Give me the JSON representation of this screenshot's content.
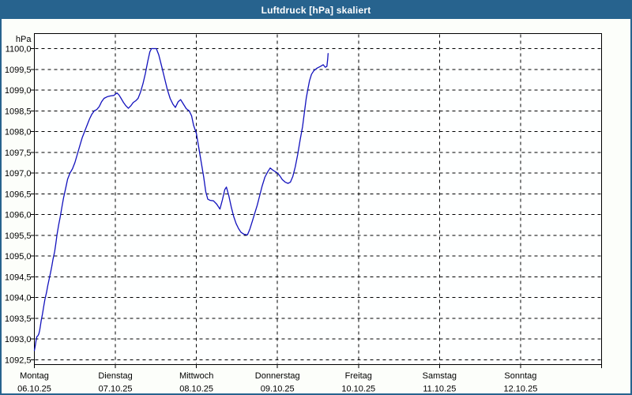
{
  "window": {
    "title": "Luftdruck [hPa] skaliert"
  },
  "colors": {
    "titlebar": "#27638E",
    "window_border": "#27638E",
    "background": "#fcfefa",
    "plot_background": "#feffff",
    "grid": "#000000",
    "text": "#000000",
    "line": "#1212bd"
  },
  "chart_data": {
    "type": "line",
    "title": "Luftdruck [hPa] skaliert",
    "unit_label": "hPa",
    "ylim": [
      1092.5,
      1100.0
    ],
    "y_tick_step": 0.5,
    "y_ticks": [
      {
        "value": 1100.0,
        "label": "1100,0"
      },
      {
        "value": 1099.5,
        "label": "1099,5"
      },
      {
        "value": 1099.0,
        "label": "1099,0"
      },
      {
        "value": 1098.5,
        "label": "1098,5"
      },
      {
        "value": 1098.0,
        "label": "1098,0"
      },
      {
        "value": 1097.5,
        "label": "1097,5"
      },
      {
        "value": 1097.0,
        "label": "1097,0"
      },
      {
        "value": 1096.5,
        "label": "1096,5"
      },
      {
        "value": 1096.0,
        "label": "1096,0"
      },
      {
        "value": 1095.5,
        "label": "1095,5"
      },
      {
        "value": 1095.0,
        "label": "1095,0"
      },
      {
        "value": 1094.5,
        "label": "1094,5"
      },
      {
        "value": 1094.0,
        "label": "1094,0"
      },
      {
        "value": 1093.5,
        "label": "1093,5"
      },
      {
        "value": 1093.0,
        "label": "1093,0"
      },
      {
        "value": 1092.5,
        "label": "1092,5"
      }
    ],
    "xlim_days": [
      0,
      7
    ],
    "x_ticks": [
      {
        "day_index": 0,
        "day": "Montag",
        "date": "06.10.25"
      },
      {
        "day_index": 1,
        "day": "Dienstag",
        "date": "07.10.25"
      },
      {
        "day_index": 2,
        "day": "Mittwoch",
        "date": "08.10.25"
      },
      {
        "day_index": 3,
        "day": "Donnerstag",
        "date": "09.10.25"
      },
      {
        "day_index": 4,
        "day": "Freitag",
        "date": "10.10.25"
      },
      {
        "day_index": 5,
        "day": "Samstag",
        "date": "11.10.25"
      },
      {
        "day_index": 6,
        "day": "Sonntag",
        "date": "12.10.25"
      }
    ],
    "grid": "dashed",
    "legend": null,
    "series": [
      {
        "name": "Luftdruck",
        "color": "#1212bd",
        "points": [
          [
            0.0,
            1092.72
          ],
          [
            0.01,
            1092.82
          ],
          [
            0.02,
            1092.95
          ],
          [
            0.03,
            1093.05
          ],
          [
            0.045,
            1093.08
          ],
          [
            0.055,
            1093.12
          ],
          [
            0.065,
            1093.2
          ],
          [
            0.075,
            1093.32
          ],
          [
            0.085,
            1093.45
          ],
          [
            0.1,
            1093.6
          ],
          [
            0.115,
            1093.78
          ],
          [
            0.13,
            1093.95
          ],
          [
            0.15,
            1094.12
          ],
          [
            0.165,
            1094.28
          ],
          [
            0.18,
            1094.42
          ],
          [
            0.2,
            1094.6
          ],
          [
            0.215,
            1094.75
          ],
          [
            0.23,
            1094.92
          ],
          [
            0.25,
            1095.1
          ],
          [
            0.265,
            1095.3
          ],
          [
            0.28,
            1095.52
          ],
          [
            0.3,
            1095.75
          ],
          [
            0.32,
            1095.95
          ],
          [
            0.34,
            1096.18
          ],
          [
            0.36,
            1096.4
          ],
          [
            0.385,
            1096.62
          ],
          [
            0.41,
            1096.85
          ],
          [
            0.44,
            1097.0
          ],
          [
            0.47,
            1097.1
          ],
          [
            0.5,
            1097.25
          ],
          [
            0.53,
            1097.45
          ],
          [
            0.56,
            1097.65
          ],
          [
            0.59,
            1097.85
          ],
          [
            0.62,
            1098.0
          ],
          [
            0.65,
            1098.15
          ],
          [
            0.68,
            1098.3
          ],
          [
            0.71,
            1098.42
          ],
          [
            0.74,
            1098.5
          ],
          [
            0.77,
            1098.53
          ],
          [
            0.8,
            1098.6
          ],
          [
            0.83,
            1098.72
          ],
          [
            0.86,
            1098.8
          ],
          [
            0.9,
            1098.84
          ],
          [
            0.94,
            1098.86
          ],
          [
            0.98,
            1098.87
          ],
          [
            1.0,
            1098.9
          ],
          [
            1.02,
            1098.93
          ],
          [
            1.045,
            1098.88
          ],
          [
            1.07,
            1098.8
          ],
          [
            1.1,
            1098.7
          ],
          [
            1.13,
            1098.62
          ],
          [
            1.16,
            1098.56
          ],
          [
            1.19,
            1098.62
          ],
          [
            1.22,
            1098.7
          ],
          [
            1.25,
            1098.74
          ],
          [
            1.28,
            1098.8
          ],
          [
            1.31,
            1098.95
          ],
          [
            1.34,
            1099.15
          ],
          [
            1.37,
            1099.4
          ],
          [
            1.4,
            1099.7
          ],
          [
            1.425,
            1099.92
          ],
          [
            1.445,
            1100.0
          ],
          [
            1.505,
            1100.0
          ],
          [
            1.535,
            1099.85
          ],
          [
            1.57,
            1099.58
          ],
          [
            1.605,
            1099.3
          ],
          [
            1.64,
            1099.02
          ],
          [
            1.675,
            1098.8
          ],
          [
            1.71,
            1098.66
          ],
          [
            1.74,
            1098.58
          ],
          [
            1.775,
            1098.72
          ],
          [
            1.805,
            1098.77
          ],
          [
            1.84,
            1098.66
          ],
          [
            1.875,
            1098.55
          ],
          [
            1.91,
            1098.5
          ],
          [
            1.94,
            1098.38
          ],
          [
            1.965,
            1098.15
          ],
          [
            2.0,
            1097.95
          ],
          [
            2.03,
            1097.6
          ],
          [
            2.06,
            1097.25
          ],
          [
            2.09,
            1096.9
          ],
          [
            2.115,
            1096.55
          ],
          [
            2.14,
            1096.37
          ],
          [
            2.17,
            1096.34
          ],
          [
            2.21,
            1096.33
          ],
          [
            2.25,
            1096.25
          ],
          [
            2.29,
            1096.13
          ],
          [
            2.32,
            1096.35
          ],
          [
            2.35,
            1096.6
          ],
          [
            2.37,
            1096.66
          ],
          [
            2.4,
            1096.45
          ],
          [
            2.43,
            1096.18
          ],
          [
            2.46,
            1095.95
          ],
          [
            2.49,
            1095.78
          ],
          [
            2.52,
            1095.66
          ],
          [
            2.55,
            1095.57
          ],
          [
            2.59,
            1095.52
          ],
          [
            2.63,
            1095.51
          ],
          [
            2.66,
            1095.65
          ],
          [
            2.69,
            1095.84
          ],
          [
            2.72,
            1096.03
          ],
          [
            2.75,
            1096.22
          ],
          [
            2.78,
            1096.45
          ],
          [
            2.81,
            1096.68
          ],
          [
            2.845,
            1096.9
          ],
          [
            2.88,
            1097.03
          ],
          [
            2.91,
            1097.12
          ],
          [
            2.95,
            1097.06
          ],
          [
            3.0,
            1097.0
          ],
          [
            3.03,
            1096.93
          ],
          [
            3.06,
            1096.84
          ],
          [
            3.095,
            1096.78
          ],
          [
            3.13,
            1096.75
          ],
          [
            3.16,
            1096.78
          ],
          [
            3.19,
            1096.92
          ],
          [
            3.22,
            1097.15
          ],
          [
            3.25,
            1097.45
          ],
          [
            3.28,
            1097.8
          ],
          [
            3.31,
            1098.12
          ],
          [
            3.335,
            1098.5
          ],
          [
            3.355,
            1098.8
          ],
          [
            3.375,
            1099.02
          ],
          [
            3.395,
            1099.22
          ],
          [
            3.42,
            1099.38
          ],
          [
            3.45,
            1099.47
          ],
          [
            3.49,
            1099.53
          ],
          [
            3.53,
            1099.57
          ],
          [
            3.565,
            1099.61
          ],
          [
            3.59,
            1099.55
          ],
          [
            3.61,
            1099.57
          ],
          [
            3.62,
            1099.75
          ],
          [
            3.625,
            1099.88
          ]
        ]
      }
    ]
  }
}
